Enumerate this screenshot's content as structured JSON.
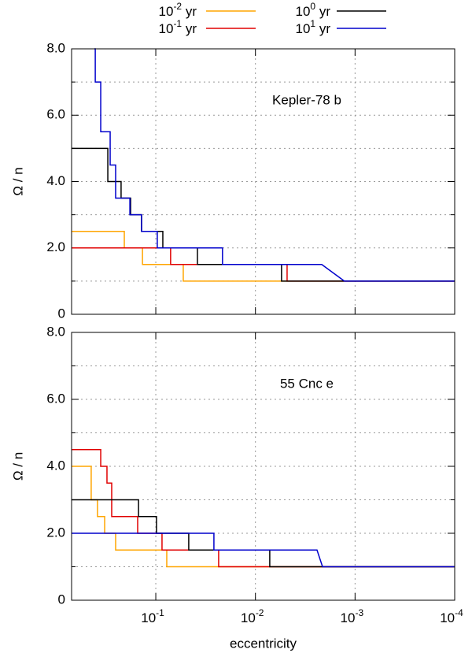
{
  "chart_data": [
    {
      "type": "line",
      "annotation": "Kepler-78 b",
      "ylabel": "Ω / n",
      "log_x": true,
      "grid": true,
      "xtick_labels_shown": false,
      "xlim": [
        0.7,
        0.0001
      ],
      "ylim": [
        0,
        8
      ],
      "xticks": [
        {
          "value": 0.1,
          "label": [
            "10",
            "-1"
          ]
        },
        {
          "value": 0.01,
          "label": [
            "10",
            "-2"
          ]
        },
        {
          "value": 0.001,
          "label": [
            "10",
            "-3"
          ]
        },
        {
          "value": 0.0001,
          "label": [
            "10",
            "-4"
          ]
        }
      ],
      "yticks": [
        0,
        {
          "value": 2,
          "label": "2.0"
        },
        {
          "value": 4,
          "label": "4.0"
        },
        {
          "value": 6,
          "label": "6.0"
        },
        {
          "value": 8,
          "label": "8.0"
        }
      ],
      "yminor": [
        1,
        3,
        5,
        7
      ],
      "series": [
        {
          "name": [
            "10",
            "-2",
            " yr"
          ],
          "color": "#ffa500",
          "x": [
            0.7,
            0.207,
            0.207,
            0.136,
            0.136,
            0.053,
            0.053,
            0.0001
          ],
          "values": [
            2.5,
            2.5,
            2,
            2,
            1.5,
            1.5,
            1,
            1
          ]
        },
        {
          "name": [
            "10",
            "-1",
            " yr"
          ],
          "color": "#e00000",
          "x": [
            0.7,
            0.071,
            0.071,
            0.00481,
            0.00481,
            0.0001
          ],
          "values": [
            2,
            2,
            1.5,
            1.5,
            1,
            1
          ]
        },
        {
          "name": [
            "10",
            "0",
            " yr"
          ],
          "color": "#000000",
          "x": [
            0.7,
            0.303,
            0.303,
            0.223,
            0.223,
            0.179,
            0.179,
            0.139,
            0.139,
            0.085,
            0.085,
            0.0382,
            0.0382,
            0.00547,
            0.00547,
            0.0001
          ],
          "values": [
            5,
            5,
            4,
            4,
            3.5,
            3.5,
            3,
            3,
            2.5,
            2.5,
            2,
            2,
            1.5,
            1.5,
            1,
            1
          ]
        },
        {
          "name": [
            "10",
            "1",
            " yr"
          ],
          "color": "#0000cc",
          "x": [
            0.413,
            0.405,
            0.405,
            0.357,
            0.357,
            0.287,
            0.287,
            0.253,
            0.253,
            0.182,
            0.182,
            0.139,
            0.139,
            0.0966,
            0.0966,
            0.0214,
            0.0214,
            0.00216,
            0.00128,
            0.0001
          ],
          "values": [
            8,
            8,
            7,
            7,
            5.5,
            5.5,
            4.5,
            4.5,
            3.5,
            3.5,
            3,
            3,
            2.5,
            2.5,
            2,
            2,
            1.5,
            1.5,
            1,
            1
          ]
        }
      ]
    },
    {
      "type": "line",
      "annotation": "55 Cnc e",
      "ylabel": "Ω / n",
      "xlabel": "eccentricity",
      "log_x": true,
      "grid": true,
      "xtick_labels_shown": true,
      "xlim": [
        0.7,
        0.0001
      ],
      "ylim": [
        0,
        8
      ],
      "xticks": [
        {
          "value": 0.1,
          "label": [
            "10",
            "-1"
          ]
        },
        {
          "value": 0.01,
          "label": [
            "10",
            "-2"
          ]
        },
        {
          "value": 0.001,
          "label": [
            "10",
            "-3"
          ]
        },
        {
          "value": 0.0001,
          "label": [
            "10",
            "-4"
          ]
        }
      ],
      "yticks": [
        0,
        {
          "value": 2,
          "label": "2.0"
        },
        {
          "value": 4,
          "label": "4.0"
        },
        {
          "value": 6,
          "label": "6.0"
        },
        {
          "value": 8,
          "label": "8.0"
        }
      ],
      "yminor": [
        1,
        3,
        5,
        7
      ],
      "series": [
        {
          "color": "#ffa500",
          "x": [
            0.7,
            0.445,
            0.445,
            0.385,
            0.385,
            0.326,
            0.326,
            0.253,
            0.253,
            0.0776,
            0.0776,
            0.0001
          ],
          "values": [
            4,
            4,
            3,
            3,
            2.5,
            2.5,
            2,
            2,
            1.5,
            1.5,
            1,
            1
          ]
        },
        {
          "color": "#e00000",
          "x": [
            0.7,
            0.357,
            0.357,
            0.309,
            0.309,
            0.277,
            0.277,
            0.152,
            0.152,
            0.0866,
            0.0866,
            0.0234,
            0.0234,
            0.0001
          ],
          "values": [
            4.5,
            4.5,
            4,
            4,
            3.5,
            3.5,
            2.5,
            2.5,
            2,
            2,
            1.5,
            1.5,
            1,
            1
          ]
        },
        {
          "color": "#000000",
          "x": [
            0.7,
            0.149,
            0.149,
            0.0984,
            0.0984,
            0.0467,
            0.0467,
            0.00718,
            0.00718,
            0.0001
          ],
          "values": [
            3,
            3,
            2.5,
            2.5,
            2,
            2,
            1.5,
            1.5,
            1,
            1
          ]
        },
        {
          "color": "#0000cc",
          "x": [
            0.7,
            0.0261,
            0.0261,
            0.00241,
            0.00212,
            0.0001
          ],
          "values": [
            2,
            2,
            1.5,
            1.5,
            1,
            1
          ]
        }
      ]
    }
  ]
}
